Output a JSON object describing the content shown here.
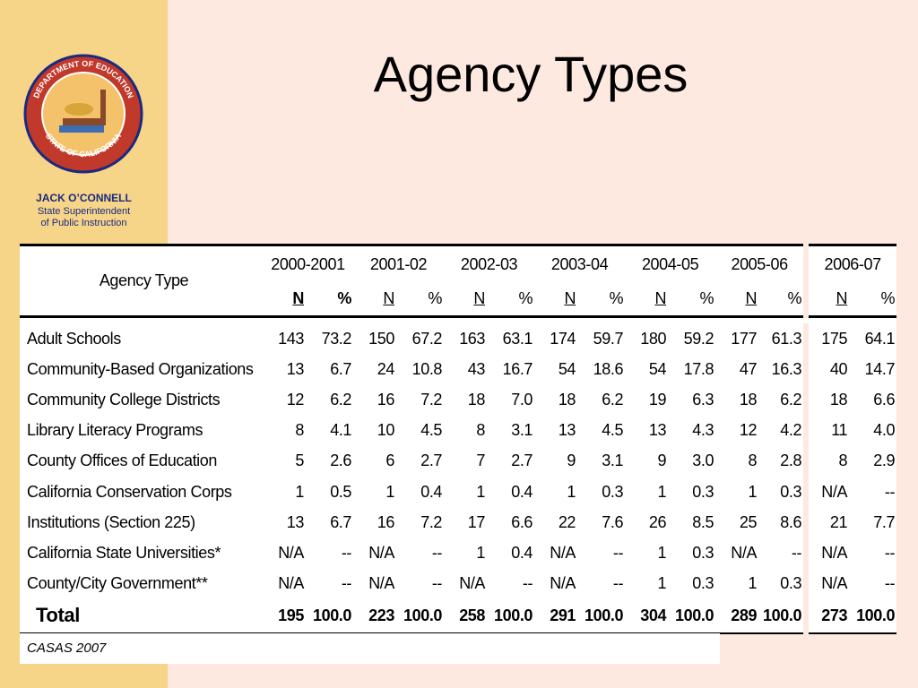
{
  "logo": {
    "top_text": "DEPARTMENT OF EDUCATION",
    "bottom_text": "STATE OF CALIFORNIA"
  },
  "sidebar": {
    "name": "JACK O’CONNELL",
    "role_line1": "State Superintendent",
    "role_line2": "of Public Instruction"
  },
  "title": "Agency Types",
  "table": {
    "header_label": "Agency Type",
    "years": [
      "2000-2001",
      "2001-02",
      "2002-03",
      "2003-04",
      "2004-05",
      "2005-06",
      "2006-07"
    ],
    "subheaders": [
      "N",
      "%"
    ],
    "rows": [
      {
        "label": "Adult Schools",
        "cells": [
          "143",
          "73.2",
          "150",
          "67.2",
          "163",
          "63.1",
          "174",
          "59.7",
          "180",
          "59.2",
          "177",
          "61.3",
          "175",
          "64.1"
        ]
      },
      {
        "label": "Community-Based Organizations",
        "cells": [
          "13",
          "6.7",
          "24",
          "10.8",
          "43",
          "16.7",
          "54",
          "18.6",
          "54",
          "17.8",
          "47",
          "16.3",
          "40",
          "14.7"
        ]
      },
      {
        "label": "Community College Districts",
        "cells": [
          "12",
          "6.2",
          "16",
          "7.2",
          "18",
          "7.0",
          "18",
          "6.2",
          "19",
          "6.3",
          "18",
          "6.2",
          "18",
          "6.6"
        ]
      },
      {
        "label": "Library Literacy Programs",
        "cells": [
          "8",
          "4.1",
          "10",
          "4.5",
          "8",
          "3.1",
          "13",
          "4.5",
          "13",
          "4.3",
          "12",
          "4.2",
          "11",
          "4.0"
        ]
      },
      {
        "label": "County Offices of Education",
        "cells": [
          "5",
          "2.6",
          "6",
          "2.7",
          "7",
          "2.7",
          "9",
          "3.1",
          "9",
          "3.0",
          "8",
          "2.8",
          "8",
          "2.9"
        ]
      },
      {
        "label": "California Conservation Corps",
        "cells": [
          "1",
          "0.5",
          "1",
          "0.4",
          "1",
          "0.4",
          "1",
          "0.3",
          "1",
          "0.3",
          "1",
          "0.3",
          "N/A",
          "--"
        ]
      },
      {
        "label": "Institutions (Section 225)",
        "cells": [
          "13",
          "6.7",
          "16",
          "7.2",
          "17",
          "6.6",
          "22",
          "7.6",
          "26",
          "8.5",
          "25",
          "8.6",
          "21",
          "7.7"
        ]
      },
      {
        "label": "California State Universities*",
        "cells": [
          "N/A",
          "--",
          "N/A",
          "--",
          "1",
          "0.4",
          "N/A",
          "--",
          "1",
          "0.3",
          "N/A",
          "--",
          "N/A",
          "--"
        ]
      },
      {
        "label": "County/City Government**",
        "cells": [
          "N/A",
          "--",
          "N/A",
          "--",
          "N/A",
          "--",
          "N/A",
          "--",
          "1",
          "0.3",
          "1",
          "0.3",
          "N/A",
          "--"
        ]
      }
    ],
    "total": {
      "label": "Total",
      "cells": [
        "195",
        "100.0",
        "223",
        "100.0",
        "258",
        "100.0",
        "291",
        "100.0",
        "304",
        "100.0",
        "289",
        "100.0",
        "273",
        "100.0"
      ]
    }
  },
  "source": "CASAS 2007"
}
